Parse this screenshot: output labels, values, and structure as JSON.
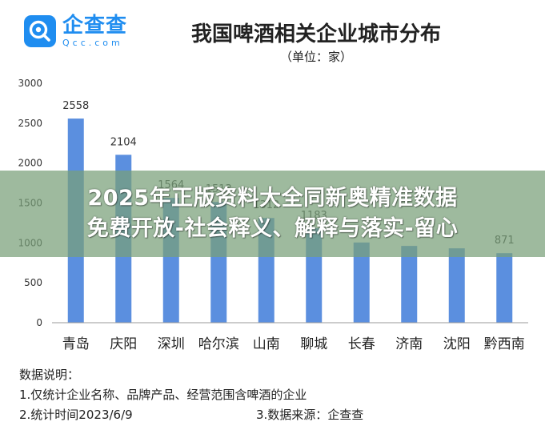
{
  "logo": {
    "cn": "企查查",
    "en": "Qcc.com"
  },
  "header": {
    "title": "我国啤酒相关企业城市分布",
    "subtitle": "（单位：家）"
  },
  "banner": {
    "line1": "2025年正版资料大全同新奥精准数据",
    "line2": "免费开放-社会释义、解释与落实-留心"
  },
  "notes": {
    "heading": "数据说明：",
    "item1": "1.仅统计企业名称、品牌产品、经营范围含啤酒的企业",
    "item2": "2.统计时间2023/6/9",
    "item3": "3.数据来源：企查查"
  },
  "colors": {
    "bar": "#5b8fdf",
    "accent": "#1f8df0",
    "banner": "#78a078"
  },
  "chart_data": {
    "type": "bar",
    "title": "我国啤酒相关企业城市分布",
    "subtitle": "（单位：家）",
    "categories": [
      "青岛",
      "庆阳",
      "深圳",
      "哈尔滨",
      "山南",
      "聊城",
      "长春",
      "济南",
      "沈阳",
      "黔西南"
    ],
    "values": [
      2558,
      2104,
      1564,
      1513,
      1312,
      1183,
      1005,
      962,
      932,
      871
    ],
    "data_labels": [
      "2558",
      "2104",
      "1564",
      "1513",
      "1312",
      "1183",
      "",
      "",
      "",
      "871"
    ],
    "yticks": [
      0,
      500,
      1000,
      1500,
      2000,
      2500,
      3000
    ],
    "ylim": [
      0,
      3000
    ],
    "grid": false,
    "legend": "none"
  }
}
